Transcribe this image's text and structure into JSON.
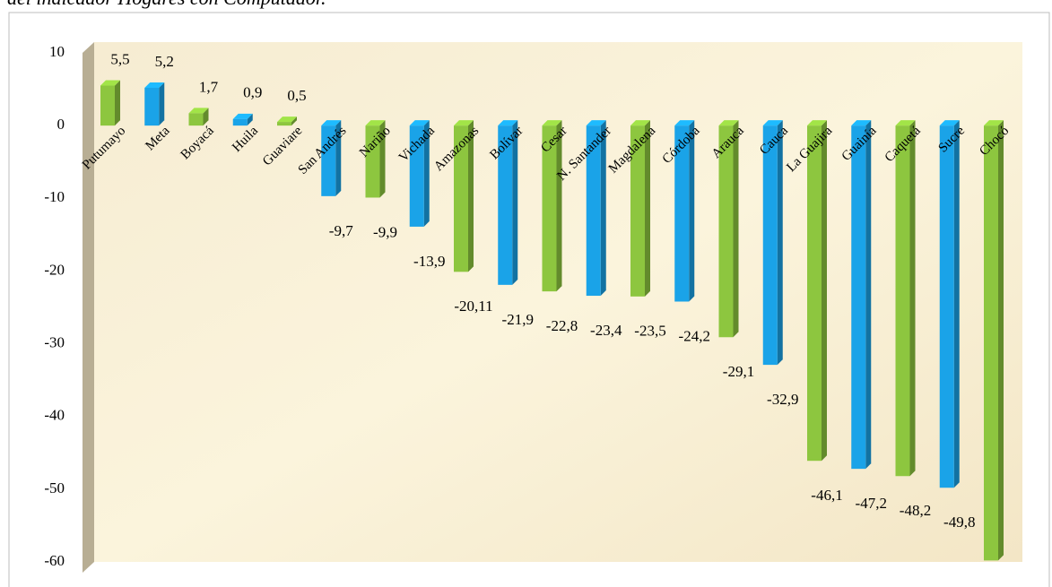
{
  "chart_data": {
    "type": "bar",
    "title": "del indicador Hogares con Computador.",
    "categories": [
      "Putumayo",
      "Meta",
      "Boyacá",
      "Huila",
      "Guaviare",
      "San Andrés",
      "Nariño",
      "Vichada",
      "Amazonas",
      "Bolívar",
      "Cesar",
      "N. Santander",
      "Magdalena",
      "Córdoba",
      "Arauca",
      "Cauca",
      "La Guajira",
      "Guainía",
      "Caquetá",
      "Sucre",
      "Chocó"
    ],
    "values": [
      5.5,
      5.2,
      1.7,
      0.9,
      0.5,
      -9.7,
      -9.9,
      -13.9,
      -20.11,
      -21.9,
      -22.8,
      -23.4,
      -23.5,
      -24.2,
      -29.1,
      -32.9,
      -46.1,
      -47.2,
      -48.2,
      -49.8,
      -59.8
    ],
    "value_labels": [
      "5,5",
      "5,2",
      "1,7",
      "0,9",
      "0,5",
      "-9,7",
      "-9,9",
      "-13,9",
      "-20,11",
      "-21,9",
      "-22,8",
      "-23,4",
      "-23,5",
      "-24,2",
      "-29,1",
      "-32,9",
      "-46,1",
      "-47,2",
      "-48,2",
      "-49,8",
      "-59,8"
    ],
    "colors": [
      "#8dc63f",
      "#1aa3e8",
      "#8dc63f",
      "#1aa3e8",
      "#8dc63f",
      "#1aa3e8",
      "#8dc63f",
      "#1aa3e8",
      "#8dc63f",
      "#1aa3e8",
      "#8dc63f",
      "#1aa3e8",
      "#8dc63f",
      "#1aa3e8",
      "#8dc63f",
      "#1aa3e8",
      "#8dc63f",
      "#1aa3e8",
      "#8dc63f",
      "#1aa3e8",
      "#8dc63f"
    ],
    "ylim": [
      -60,
      10
    ],
    "yticks": [
      10,
      0,
      -10,
      -20,
      -30,
      -40,
      -50,
      -60
    ]
  }
}
